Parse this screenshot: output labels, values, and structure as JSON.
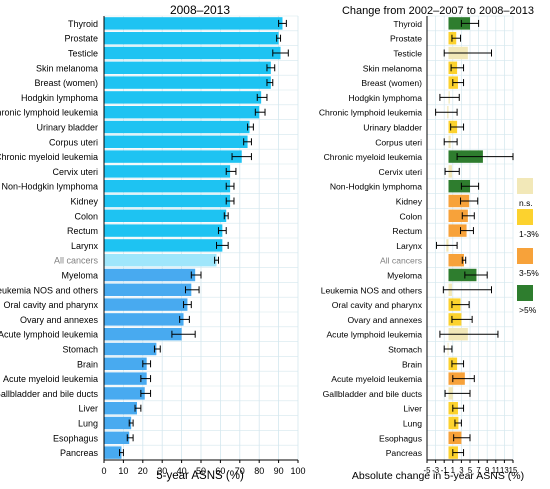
{
  "chart_data": [
    {
      "type": "bar",
      "title": "2008–2013",
      "xlabel": "5-year ASNS (%)",
      "xlim": [
        0,
        100
      ],
      "xticks": [
        0,
        10,
        20,
        30,
        40,
        50,
        60,
        70,
        80,
        90,
        100
      ],
      "categories": [
        "Thyroid",
        "Prostate",
        "Testicle",
        "Skin melanoma",
        "Breast (women)",
        "Hodgkin lymphoma",
        "Chronic lymphoid leukemia",
        "Urinary bladder",
        "Corpus uteri",
        "Chronic myeloid leukemia",
        "Cervix uteri",
        "Non-Hodgkin lymphoma",
        "Kidney",
        "Colon",
        "Rectum",
        "Larynx",
        "All cancers",
        "Myeloma",
        "Leukemia NOS and others",
        "Oral cavity and pharynx",
        "Ovary and annexes",
        "Acute lymphoid leukemia",
        "Stomach",
        "Brain",
        "Acute myeloid leukemia",
        "Gallbladder and bile ducts",
        "Liver",
        "Lung",
        "Esophagus",
        "Pancreas"
      ],
      "values": [
        92,
        90,
        91,
        86,
        86,
        81,
        80,
        75,
        74,
        71,
        65,
        65,
        65,
        63,
        61,
        61,
        58,
        47,
        45,
        43,
        41,
        40,
        27,
        22,
        22,
        21,
        17,
        14,
        13,
        9
      ],
      "ci_low": [
        90,
        89,
        87,
        84,
        84,
        79,
        78,
        74,
        72,
        66,
        63,
        63,
        63,
        62,
        59,
        58,
        57,
        45,
        42,
        41,
        39,
        35,
        26,
        20,
        19,
        19,
        16,
        13,
        12,
        8
      ],
      "ci_high": [
        94,
        91,
        95,
        88,
        87,
        84,
        83,
        77,
        76,
        76,
        68,
        67,
        67,
        64,
        63,
        64,
        59,
        50,
        49,
        45,
        44,
        47,
        29,
        24,
        24,
        24,
        19,
        15,
        15,
        10
      ],
      "highlight": "All cancers"
    },
    {
      "type": "bar",
      "title": "Change from 2002–2007 to 2008–2013",
      "xlabel": "Absolute change in 5-year ASNS (%)",
      "xlim": [
        -5,
        15
      ],
      "xticks": [
        -5,
        -3,
        -1,
        1,
        3,
        5,
        7,
        9,
        11,
        13,
        15
      ],
      "categories": [
        "Thyroid",
        "Prostate",
        "Testicle",
        "Skin melanoma",
        "Breast (women)",
        "Hodgkin lymphoma",
        "Chronic lymphoid leukemia",
        "Urinary bladder",
        "Corpus uteri",
        "Chronic myeloid leukemia",
        "Cervix uteri",
        "Non-Hodgkin lymphoma",
        "Kidney",
        "Colon",
        "Rectum",
        "Larynx",
        "All cancers",
        "Myeloma",
        "Leukemia NOS and others",
        "Oral cavity and pharynx",
        "Ovary and annexes",
        "Acute lymphoid leukemia",
        "Stomach",
        "Brain",
        "Acute myeloid leukemia",
        "Gallbladder and bile ducts",
        "Liver",
        "Lung",
        "Esophagus",
        "Pancreas"
      ],
      "values": [
        5.0,
        1.8,
        4.5,
        2.0,
        2.2,
        0.3,
        -0.3,
        2.0,
        0.5,
        8.0,
        0.8,
        5.0,
        4.8,
        4.5,
        4.2,
        -0.5,
        3.6,
        6.5,
        0.8,
        2.8,
        3.0,
        4.5,
        -0.2,
        2.0,
        3.8,
        1.0,
        2.2,
        2.3,
        3.0,
        2.2
      ],
      "ci_low": [
        3.0,
        0.8,
        -1.0,
        0.6,
        1.0,
        -2.0,
        -3.0,
        0.5,
        -1.0,
        2.0,
        -0.8,
        3.0,
        2.8,
        3.2,
        2.8,
        -2.8,
        3.2,
        3.8,
        -1.2,
        0.8,
        0.8,
        -2.0,
        -1.0,
        0.8,
        1.0,
        -0.8,
        1.0,
        1.5,
        1.2,
        1.0
      ],
      "ci_high": [
        7.0,
        2.8,
        10.0,
        3.5,
        3.5,
        2.5,
        2.0,
        3.5,
        2.0,
        15.0,
        2.5,
        7.0,
        6.8,
        6.0,
        5.8,
        2.0,
        4.0,
        9.0,
        10.0,
        4.8,
        5.5,
        11.5,
        0.8,
        3.5,
        6.0,
        5.0,
        3.5,
        3.0,
        5.0,
        3.5
      ],
      "significance": [
        "gt5",
        "1-3",
        "ns",
        "1-3",
        "1-3",
        "ns",
        "ns",
        "1-3",
        "ns",
        "gt5",
        "ns",
        "gt5",
        "3-5",
        "3-5",
        "3-5",
        "ns",
        "3-5",
        "gt5",
        "ns",
        "1-3",
        "1-3",
        "ns",
        "ns",
        "1-3",
        "3-5",
        "ns",
        "1-3",
        "1-3",
        "3-5",
        "1-3"
      ],
      "legend": [
        {
          "key": "ns",
          "label": "n.s."
        },
        {
          "key": "1-3",
          "label": "1-3%"
        },
        {
          "key": "3-5",
          "label": "3-5%"
        },
        {
          "key": "gt5",
          "label": ">5%"
        }
      ],
      "legend_position": "right"
    }
  ],
  "colors": {
    "left_bar": "#1ec3f2",
    "left_bar_below": "#48aaf0",
    "left_bar_highlight": "#9fe6fb",
    "all_cancers_label": "#808080",
    "sig_ns": "#f2e8b8",
    "sig_1_3": "#fcd22e",
    "sig_3_5": "#f7a23a",
    "sig_gt5": "#2e7d2e",
    "grid": "#d4e7ee"
  }
}
